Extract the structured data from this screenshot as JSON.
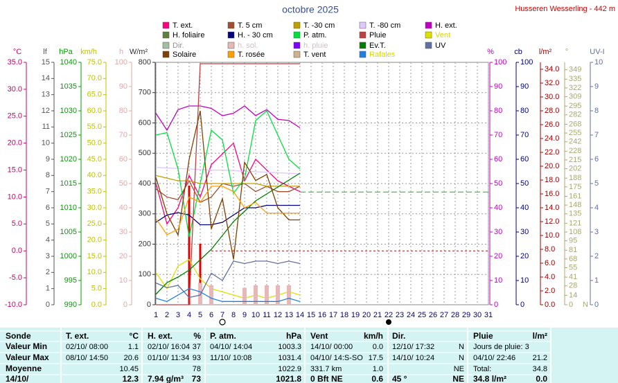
{
  "chart_data": {
    "type": "line",
    "title": "octobre 2025",
    "station": "Husseren Wesserling - 442 m",
    "xlim": [
      1,
      31
    ],
    "xticks": [
      1,
      2,
      3,
      4,
      5,
      6,
      7,
      8,
      9,
      10,
      11,
      12,
      13,
      14,
      15,
      16,
      17,
      18,
      19,
      20,
      21,
      22,
      23,
      24,
      25,
      26,
      27,
      28,
      29,
      30,
      31
    ],
    "x": [
      1,
      2,
      3,
      4,
      5,
      6,
      7,
      8,
      9,
      10,
      11,
      12,
      13,
      14
    ],
    "grid": true,
    "axes": [
      {
        "label": "°C",
        "side": "left",
        "color": "#cc0066",
        "lim": [
          -10,
          35
        ],
        "ticks": [
          {
            "value": -10,
            "label": "-10.0"
          },
          {
            "value": -5,
            "label": "-5.0"
          },
          {
            "value": 0,
            "label": "0.0"
          },
          {
            "value": 5,
            "label": "5.0"
          },
          {
            "value": 10,
            "label": "10.0"
          },
          {
            "value": 15,
            "label": "15.0"
          },
          {
            "value": 20,
            "label": "20.0"
          },
          {
            "value": 25,
            "label": "25.0"
          },
          {
            "value": 30,
            "label": "30.0"
          },
          {
            "value": 35,
            "label": "35.0"
          }
        ]
      },
      {
        "label": "lf",
        "side": "left",
        "color": "#555555",
        "lim": [
          0,
          15
        ],
        "ticks": [
          0,
          1,
          2,
          3,
          4,
          5,
          6,
          7,
          8,
          9,
          10,
          11,
          12,
          13,
          14,
          15
        ]
      },
      {
        "label": "hPa",
        "side": "left",
        "color": "#00a000",
        "lim": [
          990,
          1040
        ],
        "ticks": [
          990,
          995,
          1000,
          1005,
          1010,
          1015,
          1020,
          1025,
          1030,
          1035,
          1040
        ]
      },
      {
        "label": "km/h",
        "side": "left",
        "color": "#c0c000",
        "lim": [
          0,
          75
        ],
        "ticks": [
          {
            "value": 0,
            "label": "0.0"
          },
          {
            "value": 5,
            "label": "5.0"
          },
          {
            "value": 10,
            "label": "10.0"
          },
          {
            "value": 15,
            "label": "15.0"
          },
          {
            "value": 20,
            "label": "20.0"
          },
          {
            "value": 25,
            "label": "25.0"
          },
          {
            "value": 30,
            "label": "30.0"
          },
          {
            "value": 35,
            "label": "35.0"
          },
          {
            "value": 40,
            "label": "40.0"
          },
          {
            "value": 45,
            "label": "45.0"
          },
          {
            "value": 50,
            "label": "50.0"
          },
          {
            "value": 55,
            "label": "55.0"
          },
          {
            "value": 60,
            "label": "60.0"
          },
          {
            "value": 65,
            "label": "65.0"
          },
          {
            "value": 70,
            "label": "70.0"
          },
          {
            "value": 75,
            "label": "75.0"
          }
        ]
      },
      {
        "label": "h",
        "side": "left",
        "color": "#e0a8a8",
        "lim": [
          0,
          100
        ],
        "ticks": [
          0,
          10,
          20,
          30,
          40,
          50,
          60,
          70,
          80,
          90,
          100
        ]
      },
      {
        "label": "W/m²",
        "side": "left",
        "color": "#333333",
        "lim": [
          0,
          800
        ],
        "ticks": [
          0,
          100,
          200,
          300,
          400,
          500,
          600,
          700,
          800
        ],
        "grid": true
      },
      {
        "label": "%",
        "side": "right",
        "color": "#c000c0",
        "lim": [
          0,
          100
        ],
        "ticks": [
          0,
          10,
          20,
          30,
          40,
          50,
          60,
          70,
          80,
          90,
          100
        ]
      },
      {
        "label": "cb",
        "side": "right",
        "color": "#000080",
        "lim": [
          0,
          100
        ],
        "ticks": [
          0,
          10,
          20,
          30,
          40,
          50,
          60,
          70,
          80,
          90,
          100
        ]
      },
      {
        "label": "l/m²",
        "side": "right",
        "color": "#a00000",
        "lim": [
          0,
          35
        ],
        "ticks": [
          {
            "value": 0,
            "label": "0.0"
          },
          {
            "value": 2,
            "label": "2.0"
          },
          {
            "value": 4,
            "label": "4.0"
          },
          {
            "value": 6,
            "label": "6.0"
          },
          {
            "value": 8,
            "label": "8.0"
          },
          {
            "value": 10,
            "label": "10.0"
          },
          {
            "value": 12,
            "label": "12.0"
          },
          {
            "value": 14,
            "label": "14.0"
          },
          {
            "value": 16,
            "label": "16.0"
          },
          {
            "value": 18,
            "label": "18.0"
          },
          {
            "value": 20,
            "label": "20.0"
          },
          {
            "value": 22,
            "label": "22.0"
          },
          {
            "value": 24,
            "label": "24.0"
          },
          {
            "value": 26,
            "label": "26.0"
          },
          {
            "value": 28,
            "label": "28.0"
          },
          {
            "value": 30,
            "label": "30.0"
          },
          {
            "value": 32,
            "label": "32.0"
          },
          {
            "value": 34,
            "label": "34.0"
          }
        ]
      },
      {
        "label": "°",
        "side": "right",
        "color": "#a8a870",
        "lim": [
          0,
          360
        ],
        "north_label": "N",
        "ticks": [
          0,
          14,
          28,
          41,
          55,
          68,
          81,
          95,
          108,
          121,
          135,
          148,
          161,
          175,
          188,
          202,
          215,
          228,
          242,
          255,
          268,
          282,
          295,
          309,
          322,
          335,
          349
        ]
      },
      {
        "label": "UV-I",
        "side": "right",
        "color": "#6070a0",
        "lim": [
          0,
          10
        ],
        "ticks": [
          0,
          1,
          2,
          3,
          4,
          5,
          6,
          7,
          8,
          9,
          10
        ]
      }
    ],
    "series": [
      {
        "name": "T. ext.",
        "color": "#ff0080",
        "axis": "°C",
        "values": [
          12.5,
          5,
          8,
          14,
          10,
          16,
          18,
          20,
          13,
          17,
          15,
          13,
          12,
          11
        ]
      },
      {
        "name": "T. 5 cm",
        "color": "#a05030",
        "axis": "°C",
        "values": [
          11.5,
          10,
          9.5,
          13,
          9,
          10,
          12.5,
          12,
          12.5,
          11,
          12,
          11,
          11,
          12
        ]
      },
      {
        "name": "T. -30 cm",
        "color": "#c0a000",
        "axis": "°C",
        "values": [
          14,
          13.5,
          13,
          13,
          12.5,
          12.5,
          12.5,
          12.5,
          12.5,
          12.5,
          12,
          12,
          12,
          12
        ]
      },
      {
        "name": "T. -80 cm",
        "color": "#e0c8ff",
        "axis": "°C",
        "values": [
          15.5,
          15.4,
          15.3,
          15.2,
          15.1,
          15,
          15,
          14.9,
          14.8,
          14.7,
          14.6,
          14.5,
          14.4,
          14.3
        ]
      },
      {
        "name": "H. ext.",
        "color": "#c000c0",
        "axis": "%",
        "values": [
          79,
          72,
          80.5,
          82,
          82,
          81,
          78,
          79,
          82,
          78,
          80.5,
          76.5,
          76,
          73
        ]
      },
      {
        "name": "H. foliaire",
        "color": "#608040"
      },
      {
        "name": "H. - 30 cm",
        "color": "#000080",
        "axis": "cb",
        "values": [
          34,
          37,
          38,
          37,
          33,
          33,
          34,
          37,
          40,
          40,
          41,
          41,
          41,
          41
        ]
      },
      {
        "name": "P. atm.",
        "color": "#00e040",
        "axis": "hPa",
        "values": [
          1025,
          1025.5,
          1018,
          1004,
          1015,
          1026,
          1024,
          1013,
          1016,
          1028,
          1030,
          1025,
          1020,
          1018
        ]
      },
      {
        "name": "Pluie",
        "color": "#c04040",
        "axis": "l/m²",
        "values": [
          0,
          0,
          0,
          0,
          34.8,
          34.8,
          34.8,
          34.8,
          34.8,
          34.8,
          34.8,
          34.8,
          34.8,
          34.8
        ]
      },
      {
        "name": "Vent",
        "color": "#e0e000",
        "label_color": "#d8d800",
        "axis": "km/h",
        "values": [
          10,
          5,
          12,
          14,
          8,
          5,
          4,
          3,
          2,
          3,
          2,
          3,
          4,
          3
        ]
      },
      {
        "name": "Dir.",
        "color": "#a0c0a0",
        "label_color": "#909090"
      },
      {
        "name": "h. sol.",
        "color": "#e8b8b8",
        "label_color": "#d0c0c0",
        "axis": "h",
        "style": "bar",
        "values": [
          null,
          null,
          null,
          null,
          9,
          8,
          null,
          null,
          7,
          8,
          8,
          8,
          8,
          null
        ]
      },
      {
        "name": "h. pluie",
        "color": "#8000ff",
        "label_color": "#d0c0c0"
      },
      {
        "name": "Ev.T.",
        "color": "#008000",
        "axis": "l/m²",
        "values": [
          1.5,
          3.2,
          4,
          5,
          6.5,
          8,
          10,
          12,
          13.5,
          15,
          16,
          17,
          18,
          19
        ]
      },
      {
        "name": "UV",
        "color": "#6070a0",
        "axis": "UV-I",
        "values": [
          0.9,
          0.7,
          0.8,
          0.3,
          0.4,
          1.3,
          1,
          1.8,
          1.7,
          1.8,
          1.8,
          1.7,
          1.8,
          1.7
        ]
      },
      {
        "name": "Solaire",
        "color": "#804000",
        "axis": "W/m²",
        "values": [
          420,
          300,
          230,
          480,
          640,
          250,
          350,
          150,
          470,
          410,
          430,
          320,
          280,
          280
        ]
      },
      {
        "name": "T. rosée",
        "color": "#ffa000",
        "axis": "°C",
        "values": [
          6,
          3,
          4,
          10,
          9,
          12,
          12,
          11,
          8,
          9,
          7,
          7,
          7,
          7
        ]
      },
      {
        "name": "T. vent",
        "color": "#d0b090"
      },
      {
        "name": "Rafales",
        "color": "#2080e0",
        "label_color": "#d8d800",
        "axis": "km/h",
        "values": [
          2,
          1,
          3,
          5,
          4,
          2,
          1,
          1,
          1,
          1,
          1,
          1,
          2,
          1
        ]
      }
    ],
    "rain_bars": {
      "axis": "l/m²",
      "color": "#e00000",
      "x": [
        4,
        5
      ],
      "values": [
        17.2,
        8.8
      ]
    },
    "reference_lines": [
      {
        "axis": "hPa",
        "value": 1013.25,
        "x_from": 14,
        "color": "#00c000"
      },
      {
        "axis": "°C",
        "value": 0,
        "x_from": 6,
        "color": "#e00000"
      }
    ]
  },
  "table": {
    "header": [
      "Sonde",
      "T. ext.",
      "°C",
      "H. ext.",
      "%",
      "P. atm.",
      "hPa",
      "Vent",
      "km/h",
      "Dir.",
      null,
      "Pluie",
      "l/m²"
    ],
    "rows": [
      [
        "Valeur Min",
        "02/10/ 08:00",
        "1.1",
        "02/10/ 16:04",
        "37",
        "04/10/ 14:04",
        "1003.3",
        "14/10/ 00:00",
        "0.0",
        "12/10/ 17:32",
        "N",
        "Jours de pluie: 3",
        null
      ],
      [
        "Valeur Max",
        "08/10/ 14:50",
        "20.6",
        "01/10/ 11:34",
        "93",
        "11/10/ 10:08",
        "1031.4",
        "04/10/ 14:S-SO",
        "17.5",
        "14/10/ 10:24",
        "N",
        "04/10/ 22:46",
        "21.2"
      ],
      [
        "Moyenne",
        null,
        "10.45",
        null,
        "78",
        null,
        "1022.9",
        "331.7 km",
        "1.0",
        null,
        "NE",
        "Total:",
        "34.8"
      ],
      [
        "14/10/",
        null,
        "12.3",
        "7.94 g/m³",
        "73",
        null,
        "1021.8",
        "0 Bft NE",
        "0.6",
        "45 °",
        "NE",
        "34.8 l/m²",
        "0.0"
      ]
    ]
  }
}
